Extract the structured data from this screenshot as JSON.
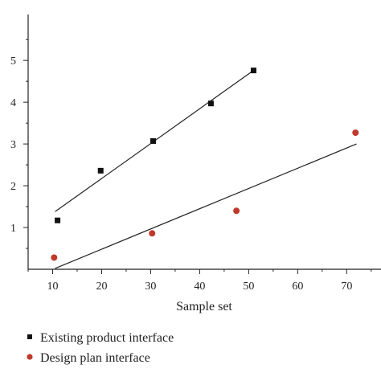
{
  "chart_data": {
    "type": "scatter",
    "title": "",
    "xlabel": "Sample set",
    "ylabel": "",
    "xlim": [
      5,
      77
    ],
    "ylim": [
      0,
      6.1
    ],
    "x_ticks": [
      10,
      20,
      30,
      40,
      50,
      60,
      70
    ],
    "y_ticks": [
      1,
      2,
      3,
      4,
      5
    ],
    "grid": false,
    "legend_position": "bottom-left",
    "series": [
      {
        "name": "Existing product interface",
        "marker": "square",
        "color": "#111111",
        "x": [
          11,
          19.8,
          30.5,
          42.3,
          51
        ],
        "y": [
          1.17,
          2.36,
          3.07,
          3.97,
          4.76
        ],
        "fit_line": {
          "x": [
            10.5,
            50.5
          ],
          "y": [
            1.38,
            4.72
          ]
        }
      },
      {
        "name": "Design plan interface",
        "marker": "circle",
        "color": "#c0392b",
        "x": [
          10.3,
          30.3,
          47.5,
          71.8
        ],
        "y": [
          0.28,
          0.86,
          1.4,
          3.27
        ],
        "fit_line": {
          "x": [
            10.5,
            72
          ],
          "y": [
            0.02,
            3.0
          ]
        }
      }
    ]
  }
}
